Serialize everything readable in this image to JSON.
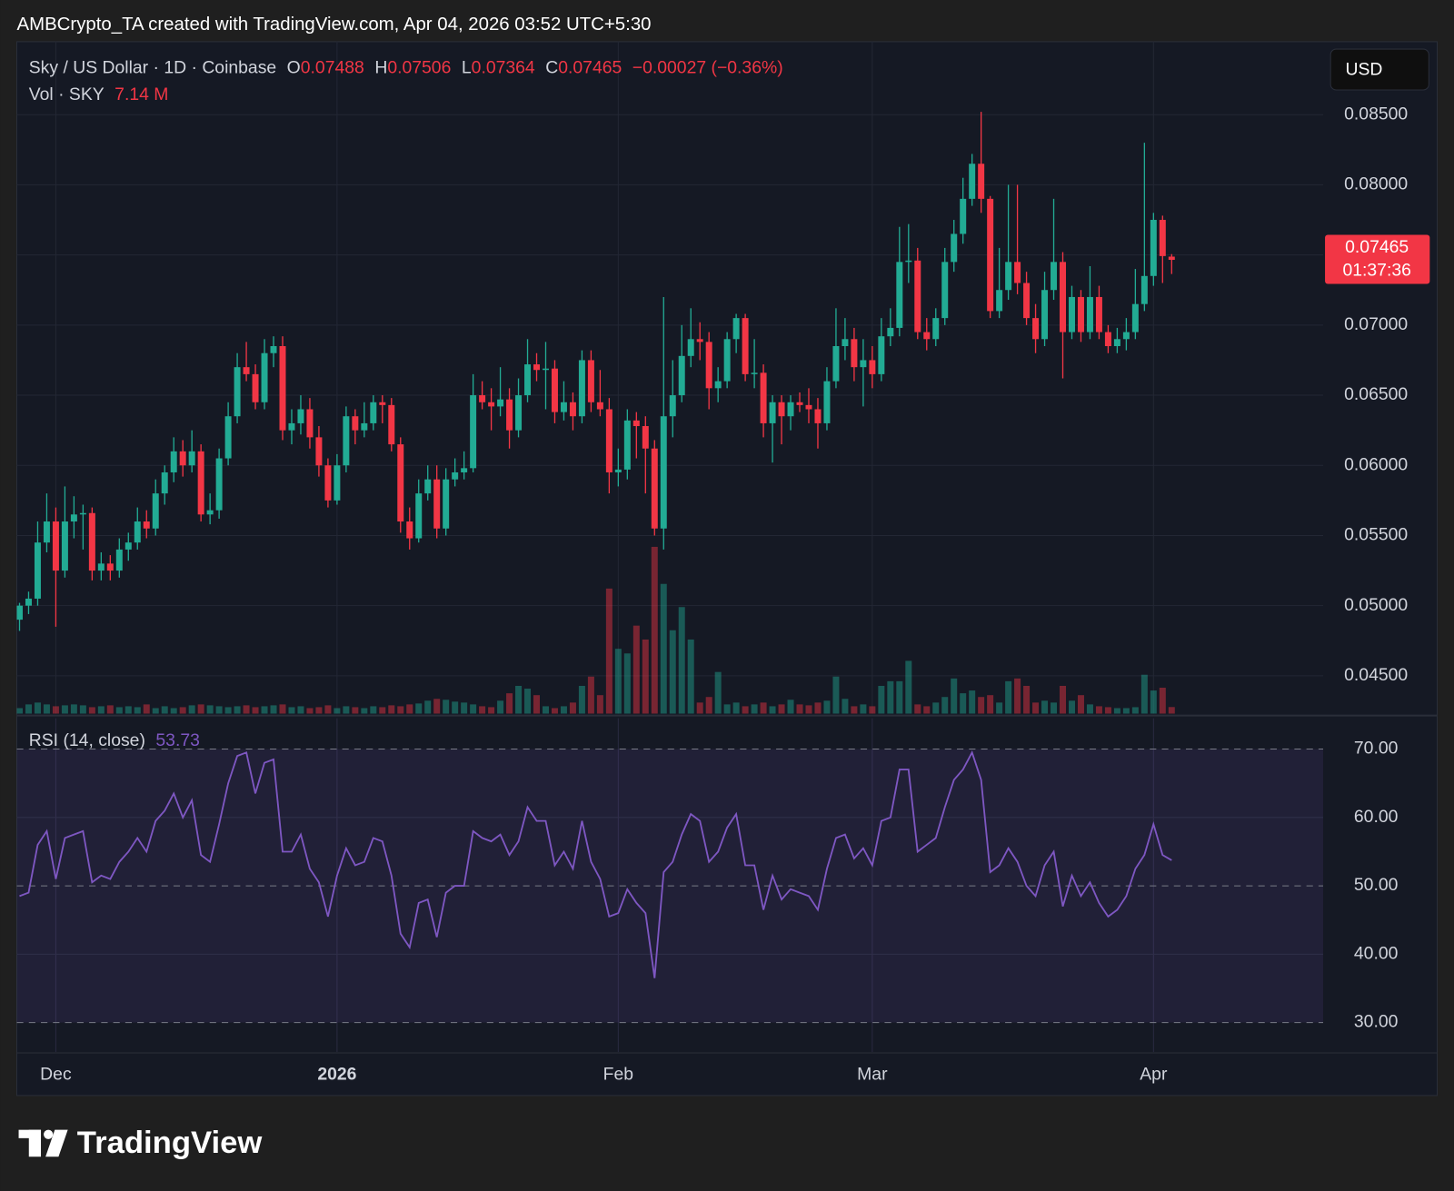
{
  "header": "AMBCrypto_TA created with TradingView.com, Apr 04, 2026 03:52 UTC+5:30",
  "brand": "TradingView",
  "chart_data": {
    "type": "candlestick",
    "symbol": "Sky / US Dollar · 1D · Coinbase",
    "ohlc_labels": [
      "O",
      "H",
      "L",
      "C"
    ],
    "change": "−0.00027 (−0.36%)",
    "currency": "USD",
    "countdown": "01:37:36",
    "up_color": "#22ab94",
    "down_color": "#f23645",
    "grid": true,
    "candles": [
      [
        0.049,
        0.0502,
        0.0482,
        0.05
      ],
      [
        0.05,
        0.051,
        0.0494,
        0.0505
      ],
      [
        0.0505,
        0.056,
        0.05,
        0.0545
      ],
      [
        0.0545,
        0.058,
        0.0538,
        0.056
      ],
      [
        0.056,
        0.057,
        0.0485,
        0.0525
      ],
      [
        0.0525,
        0.0585,
        0.052,
        0.056
      ],
      [
        0.056,
        0.0578,
        0.0548,
        0.0565
      ],
      [
        0.0565,
        0.0572,
        0.054,
        0.0566
      ],
      [
        0.0566,
        0.057,
        0.0518,
        0.0525
      ],
      [
        0.0525,
        0.0538,
        0.0518,
        0.053
      ],
      [
        0.053,
        0.0536,
        0.0518,
        0.0525
      ],
      [
        0.0525,
        0.0548,
        0.052,
        0.054
      ],
      [
        0.054,
        0.0552,
        0.0532,
        0.0545
      ],
      [
        0.0545,
        0.057,
        0.054,
        0.056
      ],
      [
        0.056,
        0.0568,
        0.0548,
        0.0555
      ],
      [
        0.0555,
        0.059,
        0.055,
        0.058
      ],
      [
        0.058,
        0.06,
        0.0572,
        0.0595
      ],
      [
        0.0595,
        0.062,
        0.0588,
        0.061
      ],
      [
        0.061,
        0.0618,
        0.0592,
        0.06
      ],
      [
        0.06,
        0.0625,
        0.0595,
        0.061
      ],
      [
        0.061,
        0.0615,
        0.056,
        0.0565
      ],
      [
        0.0565,
        0.058,
        0.0558,
        0.0568
      ],
      [
        0.0568,
        0.0612,
        0.0562,
        0.0605
      ],
      [
        0.0605,
        0.0645,
        0.06,
        0.0635
      ],
      [
        0.0635,
        0.068,
        0.063,
        0.067
      ],
      [
        0.067,
        0.0688,
        0.066,
        0.0665
      ],
      [
        0.0665,
        0.0672,
        0.064,
        0.0645
      ],
      [
        0.0645,
        0.069,
        0.064,
        0.068
      ],
      [
        0.068,
        0.0692,
        0.067,
        0.0685
      ],
      [
        0.0685,
        0.0692,
        0.0618,
        0.0625
      ],
      [
        0.0625,
        0.064,
        0.0615,
        0.063
      ],
      [
        0.063,
        0.065,
        0.0622,
        0.064
      ],
      [
        0.064,
        0.0648,
        0.0612,
        0.062
      ],
      [
        0.062,
        0.0628,
        0.0592,
        0.06
      ],
      [
        0.06,
        0.0605,
        0.057,
        0.0575
      ],
      [
        0.0575,
        0.0608,
        0.0572,
        0.06
      ],
      [
        0.06,
        0.0642,
        0.0595,
        0.0635
      ],
      [
        0.0635,
        0.064,
        0.0615,
        0.0625
      ],
      [
        0.0625,
        0.0645,
        0.062,
        0.063
      ],
      [
        0.063,
        0.065,
        0.0625,
        0.0645
      ],
      [
        0.0645,
        0.065,
        0.063,
        0.0643
      ],
      [
        0.0643,
        0.0648,
        0.061,
        0.0615
      ],
      [
        0.0615,
        0.062,
        0.0552,
        0.056
      ],
      [
        0.056,
        0.057,
        0.054,
        0.0548
      ],
      [
        0.0548,
        0.059,
        0.0545,
        0.058
      ],
      [
        0.058,
        0.06,
        0.0575,
        0.059
      ],
      [
        0.059,
        0.06,
        0.0548,
        0.0555
      ],
      [
        0.0555,
        0.0598,
        0.055,
        0.059
      ],
      [
        0.059,
        0.0605,
        0.0585,
        0.0595
      ],
      [
        0.0595,
        0.061,
        0.059,
        0.0598
      ],
      [
        0.0598,
        0.0665,
        0.0595,
        0.065
      ],
      [
        0.065,
        0.066,
        0.064,
        0.0645
      ],
      [
        0.0645,
        0.0655,
        0.0625,
        0.0642
      ],
      [
        0.0642,
        0.067,
        0.0635,
        0.0647
      ],
      [
        0.0647,
        0.0655,
        0.0612,
        0.0625
      ],
      [
        0.0625,
        0.0662,
        0.062,
        0.065
      ],
      [
        0.065,
        0.069,
        0.0645,
        0.0672
      ],
      [
        0.0672,
        0.068,
        0.066,
        0.0668
      ],
      [
        0.0668,
        0.0688,
        0.064,
        0.0669
      ],
      [
        0.0669,
        0.0675,
        0.063,
        0.0638
      ],
      [
        0.0638,
        0.066,
        0.0632,
        0.0645
      ],
      [
        0.0645,
        0.0652,
        0.0625,
        0.0635
      ],
      [
        0.0635,
        0.0682,
        0.063,
        0.0675
      ],
      [
        0.0675,
        0.0682,
        0.0638,
        0.0645
      ],
      [
        0.0645,
        0.0668,
        0.0635,
        0.064
      ],
      [
        0.064,
        0.0648,
        0.058,
        0.0595
      ],
      [
        0.0595,
        0.0612,
        0.0585,
        0.0597
      ],
      [
        0.0597,
        0.064,
        0.059,
        0.0632
      ],
      [
        0.0632,
        0.0638,
        0.0605,
        0.0628
      ],
      [
        0.0628,
        0.0635,
        0.058,
        0.0612
      ],
      [
        0.0612,
        0.0618,
        0.055,
        0.0555
      ],
      [
        0.0555,
        0.072,
        0.054,
        0.0635
      ],
      [
        0.0635,
        0.0675,
        0.062,
        0.065
      ],
      [
        0.065,
        0.07,
        0.0645,
        0.0678
      ],
      [
        0.0678,
        0.0712,
        0.067,
        0.069
      ],
      [
        0.069,
        0.0702,
        0.0675,
        0.0688
      ],
      [
        0.0688,
        0.0695,
        0.064,
        0.0655
      ],
      [
        0.0655,
        0.067,
        0.0645,
        0.066
      ],
      [
        0.066,
        0.0695,
        0.0655,
        0.069
      ],
      [
        0.069,
        0.0708,
        0.068,
        0.0705
      ],
      [
        0.0705,
        0.0708,
        0.066,
        0.0665
      ],
      [
        0.0665,
        0.069,
        0.0655,
        0.0666
      ],
      [
        0.0666,
        0.0672,
        0.062,
        0.063
      ],
      [
        0.063,
        0.065,
        0.0602,
        0.0645
      ],
      [
        0.0645,
        0.065,
        0.0615,
        0.0635
      ],
      [
        0.0635,
        0.065,
        0.0625,
        0.0645
      ],
      [
        0.0645,
        0.0652,
        0.0638,
        0.0643
      ],
      [
        0.0643,
        0.0655,
        0.063,
        0.064
      ],
      [
        0.064,
        0.0648,
        0.0612,
        0.063
      ],
      [
        0.063,
        0.067,
        0.0625,
        0.066
      ],
      [
        0.066,
        0.0712,
        0.0655,
        0.0685
      ],
      [
        0.0685,
        0.0705,
        0.0675,
        0.069
      ],
      [
        0.069,
        0.0698,
        0.066,
        0.067
      ],
      [
        0.067,
        0.069,
        0.0642,
        0.0675
      ],
      [
        0.0675,
        0.0685,
        0.0655,
        0.0665
      ],
      [
        0.0665,
        0.0705,
        0.066,
        0.0692
      ],
      [
        0.0692,
        0.0712,
        0.0685,
        0.0698
      ],
      [
        0.0698,
        0.077,
        0.0692,
        0.0745
      ],
      [
        0.0745,
        0.0772,
        0.073,
        0.0746
      ],
      [
        0.0746,
        0.0755,
        0.069,
        0.0695
      ],
      [
        0.0695,
        0.0705,
        0.0682,
        0.069
      ],
      [
        0.069,
        0.0712,
        0.0685,
        0.0705
      ],
      [
        0.0705,
        0.0755,
        0.07,
        0.0745
      ],
      [
        0.0745,
        0.0775,
        0.0738,
        0.0765
      ],
      [
        0.0765,
        0.0805,
        0.0758,
        0.079
      ],
      [
        0.079,
        0.0822,
        0.0785,
        0.0815
      ],
      [
        0.0815,
        0.0852,
        0.078,
        0.079
      ],
      [
        0.079,
        0.0792,
        0.0705,
        0.071
      ],
      [
        0.071,
        0.0755,
        0.0705,
        0.0725
      ],
      [
        0.0725,
        0.08,
        0.0718,
        0.0745
      ],
      [
        0.0745,
        0.08,
        0.0722,
        0.073
      ],
      [
        0.073,
        0.0738,
        0.07,
        0.0705
      ],
      [
        0.0705,
        0.0715,
        0.068,
        0.069
      ],
      [
        0.069,
        0.0738,
        0.0685,
        0.0725
      ],
      [
        0.0725,
        0.079,
        0.0718,
        0.0745
      ],
      [
        0.0745,
        0.0752,
        0.0662,
        0.0695
      ],
      [
        0.0695,
        0.0728,
        0.069,
        0.072
      ],
      [
        0.072,
        0.0725,
        0.0688,
        0.0695
      ],
      [
        0.0695,
        0.0742,
        0.069,
        0.072
      ],
      [
        0.072,
        0.0728,
        0.069,
        0.0695
      ],
      [
        0.0695,
        0.07,
        0.068,
        0.0685
      ],
      [
        0.0685,
        0.0698,
        0.068,
        0.069
      ],
      [
        0.069,
        0.0705,
        0.0682,
        0.0695
      ],
      [
        0.0695,
        0.074,
        0.069,
        0.0715
      ],
      [
        0.0715,
        0.083,
        0.071,
        0.0735
      ],
      [
        0.0735,
        0.078,
        0.0728,
        0.0775
      ],
      [
        0.0775,
        0.0778,
        0.073,
        0.07492
      ],
      [
        0.07488,
        0.07506,
        0.07364,
        0.07465
      ]
    ],
    "xlim": [
      -0.3,
      143.7
    ],
    "xticks": [
      {
        "value": 4,
        "label": "Dec"
      },
      {
        "value": 35,
        "label": "2026"
      },
      {
        "value": 66,
        "label": "Feb"
      },
      {
        "value": 94,
        "label": "Mar"
      },
      {
        "value": 125,
        "label": "Apr"
      }
    ],
    "ylim": [
      0.0423,
      0.0902
    ],
    "yticks": [
      {
        "value": 0.085,
        "label": "0.08500"
      },
      {
        "value": 0.08,
        "label": "0.08000"
      },
      {
        "value": 0.075,
        "label": "0.07500"
      },
      {
        "value": 0.07,
        "label": "0.07000"
      },
      {
        "value": 0.065,
        "label": "0.06500"
      },
      {
        "value": 0.06,
        "label": "0.06000"
      },
      {
        "value": 0.055,
        "label": "0.05500"
      },
      {
        "value": 0.05,
        "label": "0.05000"
      },
      {
        "value": 0.045,
        "label": "0.04500"
      }
    ],
    "volume": {
      "title": "Vol · SKY",
      "ylim": [
        0,
        725
      ],
      "values": [
        6,
        10,
        12,
        10,
        8,
        9,
        10,
        9,
        7,
        8,
        9,
        7,
        8,
        7,
        10,
        6,
        8,
        6,
        7,
        9,
        10,
        9,
        8,
        7,
        8,
        9,
        7,
        8,
        9,
        10,
        7,
        8,
        6,
        7,
        9,
        6,
        8,
        7,
        6,
        8,
        7,
        9,
        8,
        10,
        11,
        14,
        16,
        15,
        13,
        12,
        10,
        8,
        7,
        14,
        22,
        30,
        27,
        20,
        8,
        6,
        8,
        12,
        30,
        40,
        20,
        135,
        70,
        65,
        95,
        80,
        180,
        140,
        90,
        115,
        80,
        12,
        18,
        45,
        10,
        12,
        8,
        10,
        12,
        8,
        10,
        15,
        10,
        9,
        12,
        14,
        40,
        16,
        8,
        10,
        8,
        30,
        35,
        35,
        57,
        10,
        8,
        12,
        18,
        38,
        22,
        25,
        18,
        20,
        12,
        35,
        38,
        30,
        12,
        14,
        12,
        30,
        14,
        20,
        10,
        8,
        7,
        6,
        6,
        7,
        42,
        25,
        28,
        7.14
      ],
      "value_label": "7.14 M"
    },
    "rsi": {
      "title": "RSI (14, close)",
      "color": "#7e57c2",
      "ylim": [
        25.7,
        74.5
      ],
      "yticks": [
        {
          "value": 70,
          "label": "70.00"
        },
        {
          "value": 60,
          "label": "60.00"
        },
        {
          "value": 50,
          "label": "50.00"
        },
        {
          "value": 40,
          "label": "40.00"
        },
        {
          "value": 30,
          "label": "30.00"
        }
      ],
      "values": [
        48.5,
        49,
        56,
        58,
        51,
        57,
        57.5,
        58,
        50.5,
        51.5,
        51,
        53.5,
        55,
        57,
        55,
        59.5,
        61,
        63.5,
        60,
        62.5,
        54.5,
        53.5,
        59,
        65,
        69,
        69.5,
        63.5,
        68,
        68.5,
        55,
        55,
        57.5,
        52.5,
        50.5,
        45.5,
        51.5,
        55.5,
        53,
        53.5,
        57,
        56.5,
        51.5,
        43,
        41,
        47.5,
        48,
        42.5,
        49,
        50,
        50,
        58,
        57,
        56.5,
        57.5,
        54.5,
        56.5,
        61.5,
        59.5,
        59.5,
        53,
        55,
        52.5,
        59.5,
        53.5,
        51,
        45.5,
        46,
        49.5,
        47.5,
        46,
        36.5,
        52,
        53.5,
        57.5,
        60.5,
        59.5,
        53.5,
        55,
        58.5,
        60.5,
        53,
        53,
        46.5,
        51.5,
        48,
        49.5,
        49,
        48.5,
        46.5,
        52.5,
        57,
        57.5,
        54,
        55.5,
        53,
        59.5,
        60,
        67,
        67,
        55,
        56,
        57,
        61.5,
        65.5,
        67,
        69.5,
        65.5,
        52,
        53,
        55.5,
        53.5,
        50,
        48.5,
        53,
        55,
        47,
        51.5,
        48.5,
        50.5,
        47.5,
        45.5,
        46.5,
        48.5,
        52.5,
        54.5,
        59,
        54.5,
        53.73
      ]
    }
  }
}
